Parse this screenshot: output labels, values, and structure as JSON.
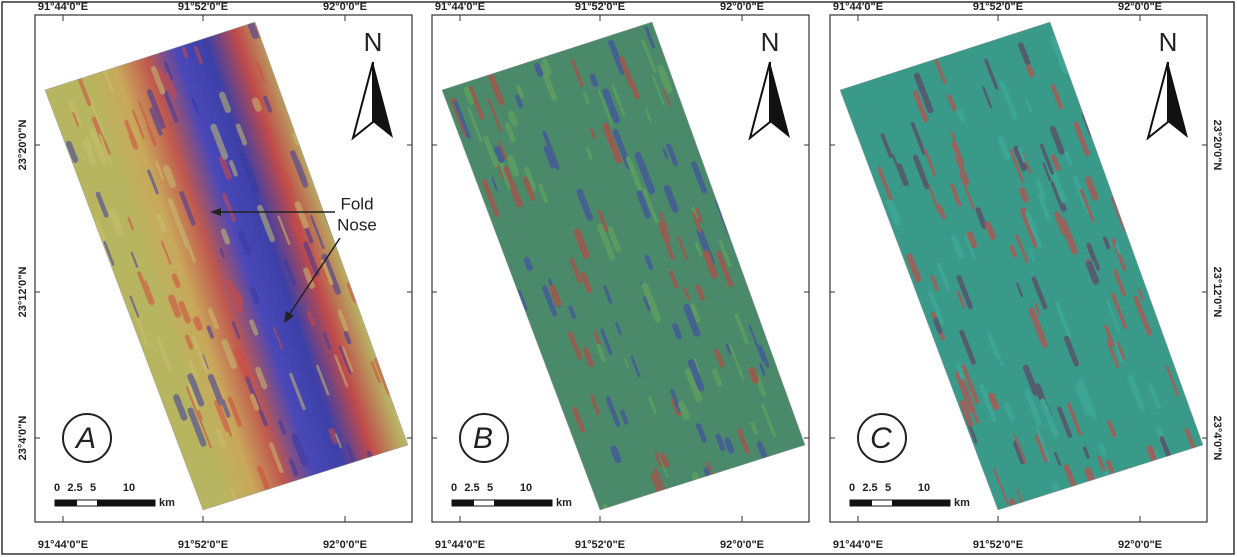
{
  "panels": [
    {
      "letter": "A",
      "north": "N",
      "top_labels": [
        "91°44'0\"E",
        "91°52'0\"E",
        "92°0'0\"E"
      ],
      "bottom_labels": [
        "91°44'0\"E",
        "91°52'0\"E",
        "92°0'0\"E"
      ],
      "side_labels": [
        "23°20'0\"N",
        "23°12'0\"N",
        "23°4'0\"N"
      ],
      "scale": {
        "ticks": [
          "0",
          "2.5",
          "5",
          "10"
        ],
        "unit": "km"
      },
      "annotation": [
        "Fold",
        "Nose"
      ]
    },
    {
      "letter": "B",
      "north": "N",
      "top_labels": [
        "91°44'0\"E",
        "91°52'0\"E",
        "92°0'0\"E"
      ],
      "bottom_labels": [
        "91°44'0\"E",
        "91°52'0\"E",
        "92°0'0\"E"
      ],
      "scale": {
        "ticks": [
          "0",
          "2.5",
          "5",
          "10"
        ],
        "unit": "km"
      }
    },
    {
      "letter": "C",
      "north": "N",
      "top_labels": [
        "91°44'0\"E",
        "91°52'0\"E",
        "92°0'0\"E"
      ],
      "bottom_labels": [
        "91°44'0\"E",
        "91°52'0\"E",
        "92°0'0\"E"
      ],
      "side_labels": [
        "23°20'0\"N",
        "23°12'0\"N",
        "23°4'0\"N"
      ],
      "scale": {
        "ticks": [
          "0",
          "2.5",
          "5",
          "10"
        ],
        "unit": "km"
      }
    }
  ]
}
